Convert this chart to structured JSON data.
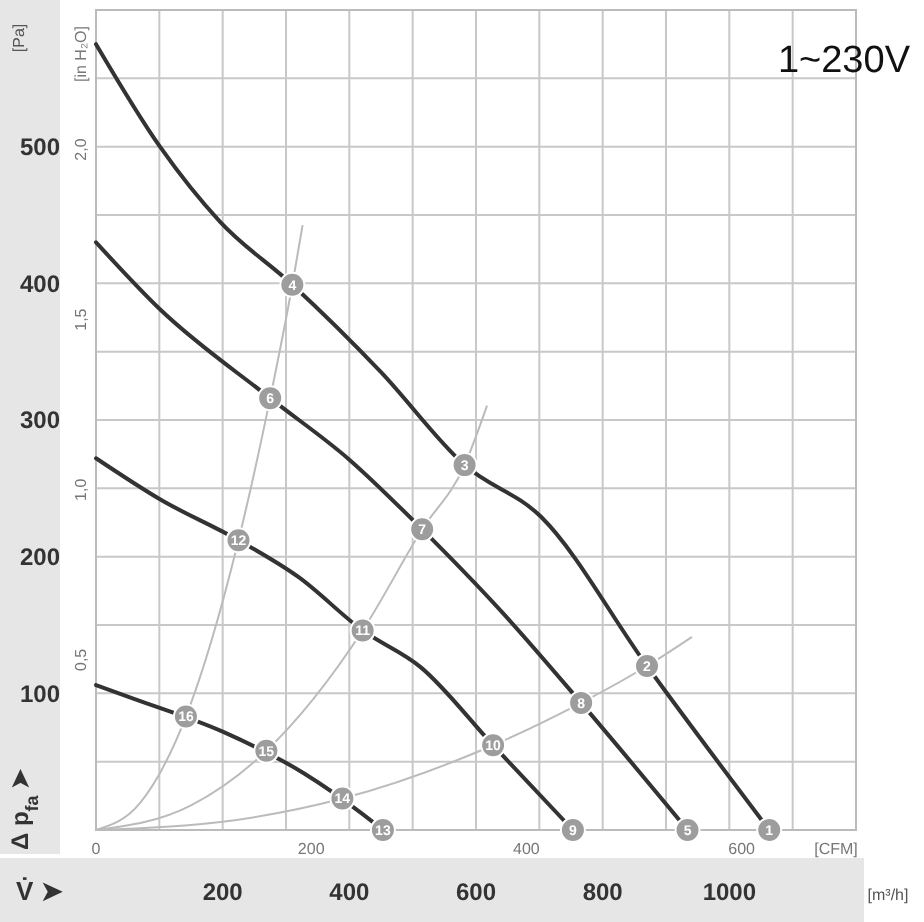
{
  "chart_data": {
    "type": "line",
    "xlabel": "[m³/h]",
    "ylabel": "[Pa]",
    "x2label": "[CFM]",
    "y2label": "[in H₂O]",
    "xlim": [
      0,
      1200
    ],
    "xticks": [
      {
        "value": 0,
        "label": null
      },
      {
        "value": 100,
        "label": null
      },
      200,
      {
        "value": 300,
        "label": null
      },
      400,
      {
        "value": 500,
        "label": null
      },
      600,
      {
        "value": 700,
        "label": null
      },
      800,
      {
        "value": 900,
        "label": null
      },
      1000,
      {
        "value": 1100,
        "label": null
      },
      {
        "value": 1200,
        "label": null
      }
    ],
    "ylim": [
      0,
      600
    ],
    "yticks": [
      {
        "value": 0,
        "label": null
      },
      {
        "value": 50,
        "label": null
      },
      100,
      {
        "value": 150,
        "label": null
      },
      200,
      {
        "value": 250,
        "label": null
      },
      300,
      {
        "value": 350,
        "label": null
      },
      400,
      {
        "value": 450,
        "label": null
      },
      500,
      {
        "value": 550,
        "label": null
      },
      {
        "value": 600,
        "label": null
      }
    ],
    "x2lim": [
      0,
      706.3
    ],
    "x2ticks": [
      0,
      200,
      400,
      600
    ],
    "y2lim": [
      0,
      2.41
    ],
    "y2ticks": [
      {
        "value": 0.5,
        "label": "0,5"
      },
      {
        "value": 1,
        "label": "1,0"
      },
      {
        "value": 1.5,
        "label": "1,5"
      },
      {
        "value": 2,
        "label": "2,0"
      }
    ],
    "grid": true,
    "line_style": "solid",
    "series": [
      {
        "color": "#333333",
        "x": [
          0,
          101,
          196,
          310,
          450,
          582,
          703,
          870,
          1063
        ],
        "values": [
          575,
          500,
          445,
          399,
          335,
          267,
          229,
          120,
          0
        ]
      },
      {
        "color": "#333333",
        "x": [
          0,
          101,
          275,
          400,
          515,
          640,
          766,
          934
        ],
        "values": [
          430,
          381,
          316,
          271,
          220,
          160,
          93,
          0
        ]
      },
      {
        "color": "#333333",
        "x": [
          0,
          101,
          225,
          320,
          421,
          513,
          627,
          753
        ],
        "values": [
          272,
          242,
          212,
          185,
          146,
          119,
          62,
          0
        ]
      },
      {
        "color": "#333333",
        "x": [
          0,
          60,
          200,
          330,
          420,
          453
        ],
        "values": [
          106,
          96,
          72,
          41,
          12,
          0
        ]
      },
      {
        "color": "#bbbbbb",
        "x": [
          0,
          70,
          142,
          225,
          275,
          310,
          326
        ],
        "values": [
          0,
          20,
          83,
          212,
          316,
          399,
          442
        ]
      },
      {
        "color": "#bbbbbb",
        "x": [
          0,
          150,
          269,
          421,
          515,
          582,
          617
        ],
        "values": [
          0,
          18,
          58,
          146,
          220,
          267,
          310
        ]
      },
      {
        "color": "#bbbbbb",
        "x": [
          0,
          200,
          389,
          627,
          766,
          870,
          940
        ],
        "values": [
          0,
          6,
          23,
          62,
          93,
          120,
          141
        ]
      }
    ],
    "annotations": [
      "1~230V",
      "V̇ ➤",
      "Δ p$_{fa}$ ➤",
      {
        "text": "1",
        "x": 1063,
        "y": 0
      },
      {
        "text": "2",
        "x": 870,
        "y": 120
      },
      {
        "text": "3",
        "x": 582,
        "y": 267
      },
      {
        "text": "4",
        "x": 310,
        "y": 399
      },
      {
        "text": "5",
        "x": 934,
        "y": 0
      },
      {
        "text": "6",
        "x": 275,
        "y": 316
      },
      {
        "text": "7",
        "x": 515,
        "y": 220
      },
      {
        "text": "8",
        "x": 766,
        "y": 93
      },
      {
        "text": "9",
        "x": 753,
        "y": 0
      },
      {
        "text": "10",
        "x": 627,
        "y": 62
      },
      {
        "text": "11",
        "x": 421,
        "y": 146
      },
      {
        "text": "12",
        "x": 225,
        "y": 212
      },
      {
        "text": "13",
        "x": 453,
        "y": 0
      },
      {
        "text": "14",
        "x": 389,
        "y": 23
      },
      {
        "text": "15",
        "x": 269,
        "y": 58
      },
      {
        "text": "16",
        "x": 142,
        "y": 83
      }
    ]
  }
}
